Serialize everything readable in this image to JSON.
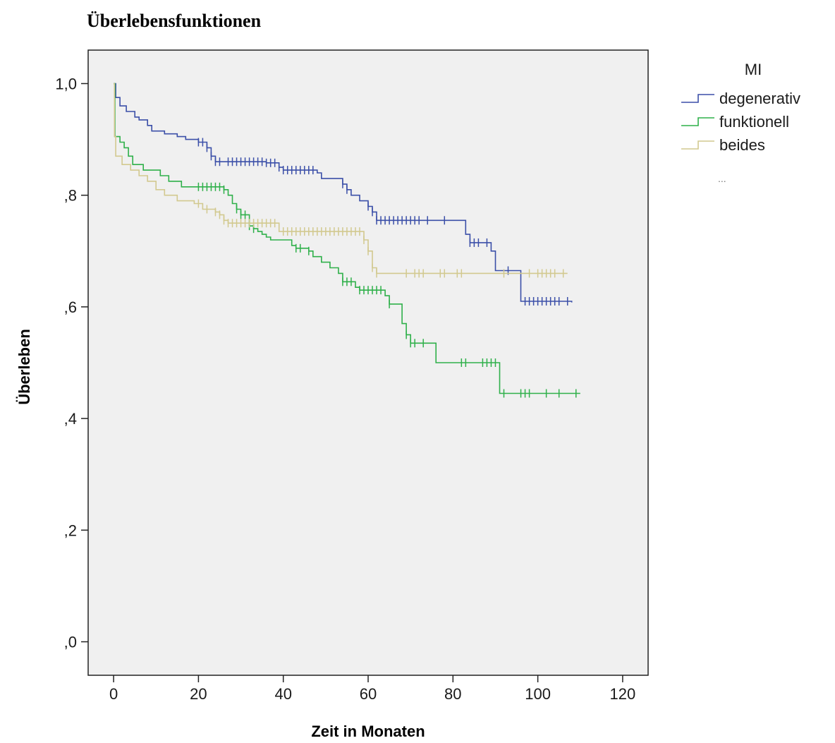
{
  "chart_data": {
    "type": "line",
    "title": "Überlebensfunktionen",
    "xlabel": "Zeit in Monaten",
    "ylabel": "Überleben",
    "xlim": [
      -6,
      126
    ],
    "ylim": [
      -0.06,
      1.06
    ],
    "x_ticks": [
      0,
      20,
      40,
      60,
      80,
      100,
      120
    ],
    "x_tick_labels": [
      "0",
      "20",
      "40",
      "60",
      "80",
      "100",
      "120"
    ],
    "y_ticks": [
      0,
      0.2,
      0.4,
      0.6,
      0.8,
      1.0
    ],
    "y_tick_labels": [
      ",0",
      ",2",
      ",4",
      ",6",
      ",8",
      "1,0"
    ],
    "plot_background": "#f0f0f0",
    "step_line": true,
    "legend": {
      "title": "MI",
      "placement": "right",
      "more": "..."
    },
    "series": [
      {
        "name": "degenerativ",
        "color": "#3b4fa8",
        "points": [
          [
            0,
            1.0
          ],
          [
            0.5,
            0.975
          ],
          [
            1.5,
            0.96
          ],
          [
            3,
            0.95
          ],
          [
            5,
            0.94
          ],
          [
            6,
            0.935
          ],
          [
            8,
            0.925
          ],
          [
            9,
            0.915
          ],
          [
            12,
            0.91
          ],
          [
            15,
            0.905
          ],
          [
            17,
            0.9
          ],
          [
            20,
            0.895
          ],
          [
            22,
            0.885
          ],
          [
            23,
            0.87
          ],
          [
            24,
            0.86
          ],
          [
            36,
            0.858
          ],
          [
            39,
            0.85
          ],
          [
            40,
            0.845
          ],
          [
            48,
            0.84
          ],
          [
            49,
            0.83
          ],
          [
            54,
            0.82
          ],
          [
            55,
            0.81
          ],
          [
            56,
            0.8
          ],
          [
            58,
            0.79
          ],
          [
            60,
            0.78
          ],
          [
            61,
            0.77
          ],
          [
            62,
            0.755
          ],
          [
            83,
            0.73
          ],
          [
            84,
            0.715
          ],
          [
            89,
            0.7
          ],
          [
            90,
            0.665
          ],
          [
            96,
            0.61
          ],
          [
            108,
            0.608
          ]
        ],
        "censor_x": [
          20,
          21,
          22,
          23,
          24,
          25,
          27,
          28,
          29,
          30,
          31,
          32,
          33,
          34,
          35,
          36,
          37,
          38,
          39,
          40,
          41,
          42,
          43,
          44,
          45,
          46,
          47,
          54,
          55,
          60,
          61,
          62,
          63,
          64,
          65,
          66,
          67,
          68,
          69,
          70,
          71,
          72,
          74,
          78,
          84,
          85,
          86,
          88,
          93,
          97,
          98,
          99,
          100,
          101,
          102,
          103,
          104,
          105,
          107
        ]
      },
      {
        "name": "funktionell",
        "color": "#2fb04a",
        "points": [
          [
            0,
            1.0
          ],
          [
            0.3,
            0.905
          ],
          [
            1.5,
            0.895
          ],
          [
            2.5,
            0.885
          ],
          [
            3.5,
            0.87
          ],
          [
            4.5,
            0.855
          ],
          [
            7,
            0.845
          ],
          [
            11,
            0.835
          ],
          [
            13,
            0.825
          ],
          [
            16,
            0.815
          ],
          [
            26,
            0.81
          ],
          [
            27,
            0.8
          ],
          [
            28,
            0.785
          ],
          [
            29,
            0.775
          ],
          [
            30,
            0.765
          ],
          [
            32,
            0.745
          ],
          [
            33,
            0.74
          ],
          [
            34,
            0.735
          ],
          [
            35,
            0.73
          ],
          [
            36,
            0.725
          ],
          [
            37,
            0.72
          ],
          [
            42,
            0.71
          ],
          [
            43,
            0.705
          ],
          [
            46,
            0.7
          ],
          [
            47,
            0.69
          ],
          [
            49,
            0.68
          ],
          [
            51,
            0.67
          ],
          [
            53,
            0.66
          ],
          [
            54,
            0.645
          ],
          [
            57,
            0.635
          ],
          [
            58,
            0.63
          ],
          [
            64,
            0.62
          ],
          [
            65,
            0.605
          ],
          [
            68,
            0.57
          ],
          [
            69,
            0.55
          ],
          [
            70,
            0.535
          ],
          [
            76,
            0.5
          ],
          [
            91,
            0.445
          ],
          [
            110,
            0.445
          ]
        ],
        "censor_x": [
          20,
          21,
          22,
          23,
          24,
          25,
          26,
          29,
          30,
          31,
          32,
          33,
          43,
          44,
          46,
          54,
          55,
          56,
          58,
          59,
          60,
          61,
          62,
          63,
          65,
          69,
          70,
          71,
          73,
          82,
          83,
          87,
          88,
          89,
          90,
          92,
          96,
          97,
          98,
          102,
          105,
          109
        ]
      },
      {
        "name": "beides",
        "color": "#d2c98f",
        "points": [
          [
            0,
            1.0
          ],
          [
            0.2,
            0.905
          ],
          [
            0.5,
            0.87
          ],
          [
            2,
            0.855
          ],
          [
            4,
            0.845
          ],
          [
            6,
            0.835
          ],
          [
            8,
            0.825
          ],
          [
            10,
            0.81
          ],
          [
            12,
            0.8
          ],
          [
            15,
            0.79
          ],
          [
            19,
            0.785
          ],
          [
            21,
            0.775
          ],
          [
            24,
            0.77
          ],
          [
            25,
            0.765
          ],
          [
            26,
            0.755
          ],
          [
            27,
            0.75
          ],
          [
            39,
            0.735
          ],
          [
            59,
            0.72
          ],
          [
            60,
            0.7
          ],
          [
            61,
            0.67
          ],
          [
            62,
            0.66
          ],
          [
            107,
            0.66
          ]
        ],
        "censor_x": [
          20,
          22,
          24,
          25,
          26,
          27,
          28,
          29,
          30,
          31,
          32,
          33,
          34,
          35,
          36,
          37,
          38,
          40,
          41,
          42,
          43,
          44,
          45,
          46,
          47,
          48,
          49,
          50,
          51,
          52,
          53,
          54,
          55,
          56,
          57,
          58,
          59,
          60,
          61,
          62,
          69,
          71,
          72,
          73,
          77,
          78,
          81,
          82,
          92,
          98,
          100,
          101,
          102,
          103,
          104,
          106
        ]
      }
    ]
  }
}
